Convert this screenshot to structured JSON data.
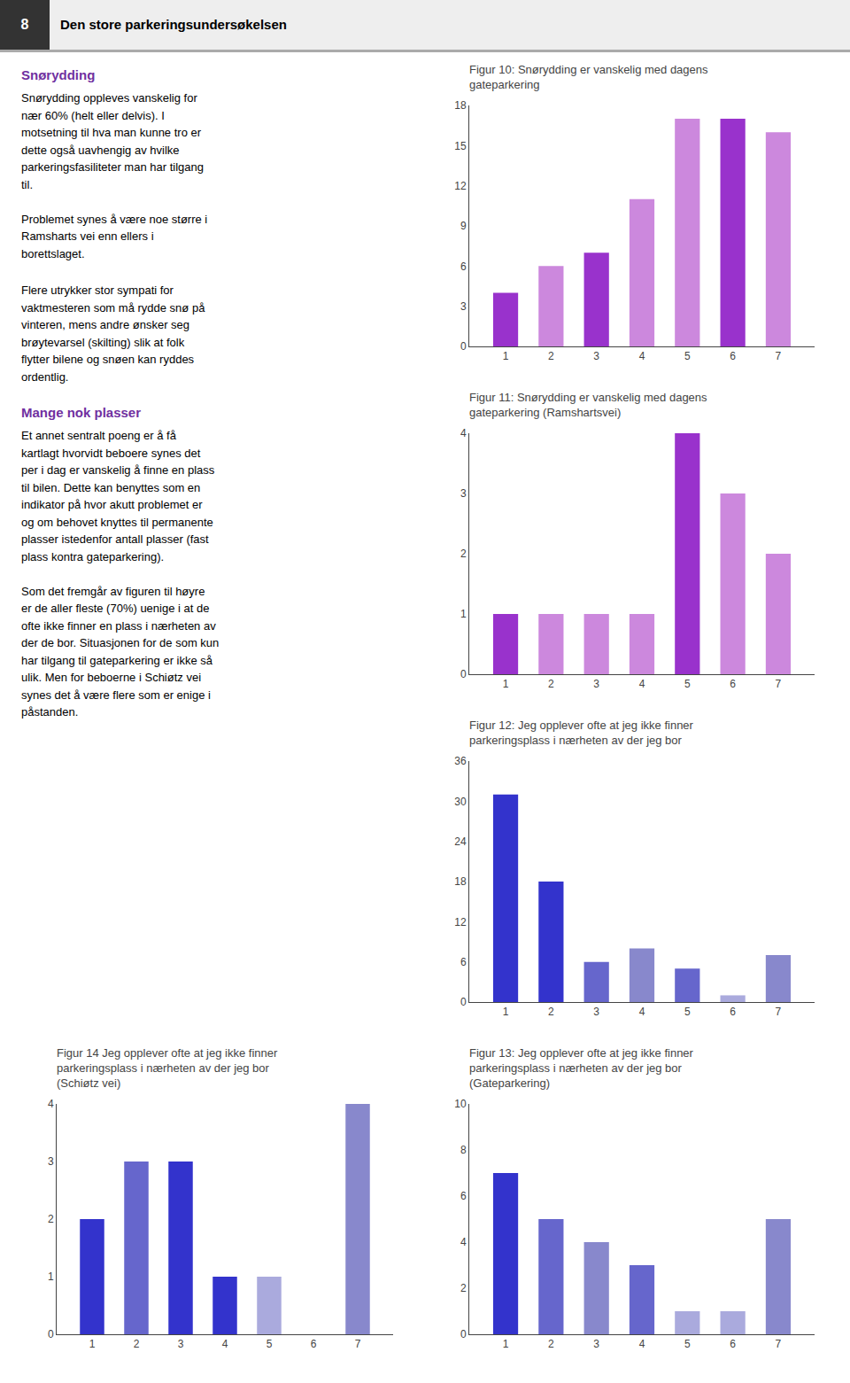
{
  "title": "Den store parkeringsundersøkelsen",
  "annotations": [
    {
      "text": "8"
    },
    {
      "title": "Snørydding",
      "text": "Snørydding oppleves vanskelig for\nnær 60% (helt eller delvis). I\nmotsetning til hva man kunne tro er\ndette også uavhengig av hvilke\nparkeringsfasiliteter man har tilgang\ntil.\n\nProblemet synes å være noe større i\nRamsharts vei enn ellers i\nborettslaget."
    },
    {
      "text": "Flere utrykker stor sympati for\nvaktmesteren som må rydde snø på\nvinteren, mens andre ønsker seg\nbrøytevarsel (skilting) slik at folk\nflytter bilene og snøen kan ryddes\nordentlig."
    },
    {
      "title": "Mange nok plasser",
      "text": "Et annet sentralt poeng er å få\nkartlagt hvorvidt beboere synes det\nper i dag er vanskelig å finne en plass\ntil bilen. Dette kan benyttes som en\nindikator på hvor akutt problemet er\nog om behovet knyttes til permanente\nplasser istedenfor antall plasser (fast\nplass kontra gateparkering).\n\nSom det fremgår av figuren til høyre\ner de aller fleste (70%) uenige i at de\nofte ikke finner en plass i nærheten av\nder de bor. Situasjonen for de som kun\nhar tilgang til gateparkering er ikke så\nulik. Men for beboerne i Schiøtz vei\nsynes det å være flere som er enige i\npåstanden."
    }
  ],
  "chart_data": [
    {
      "type": "bar",
      "title": "Figur 10: Snørydding er vanskelig med dagens\ngateparkering",
      "x": [
        1,
        2,
        3,
        4,
        5,
        6,
        7
      ],
      "values": [
        4,
        6,
        7,
        11,
        17,
        17,
        16
      ],
      "colors": [
        "#9932cc",
        "#cc88dd",
        "#9932cc",
        "#cc88dd",
        "#cc88dd",
        "#9932cc",
        "#cc88dd"
      ],
      "xlim": [
        0.2,
        7.8
      ],
      "xticks": [
        1,
        2,
        3,
        4,
        5,
        6,
        7
      ],
      "ylim": [
        0,
        18
      ],
      "yticks": [
        0,
        3,
        6,
        9,
        12,
        15,
        18
      ],
      "grid": false
    },
    {
      "type": "bar",
      "title": "Figur 11: Snørydding er vanskelig med dagens\ngateparkering (Ramshartsvei)",
      "x": [
        1,
        2,
        3,
        4,
        5,
        6,
        7
      ],
      "values": [
        1,
        1,
        1,
        1,
        4,
        3,
        2
      ],
      "colors": [
        "#9932cc",
        "#cc88dd",
        "#cc88dd",
        "#cc88dd",
        "#9932cc",
        "#cc88dd",
        "#cc88dd"
      ],
      "xlim": [
        0.2,
        7.8
      ],
      "xticks": [
        1,
        2,
        3,
        4,
        5,
        6,
        7
      ],
      "ylim": [
        0,
        4
      ],
      "yticks": [
        0,
        1,
        2,
        3,
        4
      ],
      "grid": false
    },
    {
      "type": "bar",
      "title": "Figur 12: Jeg opplever ofte at jeg ikke finner\nparkeringsplass i nærheten av der jeg bor",
      "x": [
        1,
        2,
        3,
        4,
        5,
        6,
        7
      ],
      "values": [
        31,
        18,
        6,
        8,
        5,
        1,
        7
      ],
      "colors": [
        "#3333cc",
        "#3333cc",
        "#6666cc",
        "#8888cc",
        "#6666cc",
        "#aaaadd",
        "#8888cc"
      ],
      "xlim": [
        0.2,
        7.8
      ],
      "xticks": [
        1,
        2,
        3,
        4,
        5,
        6,
        7
      ],
      "ylim": [
        0,
        36
      ],
      "yticks": [
        0,
        6,
        12,
        18,
        24,
        30,
        36
      ],
      "grid": false
    },
    {
      "type": "bar",
      "title": "Figur 13: Jeg opplever ofte at jeg ikke finner\nparkeringsplass i nærheten av der jeg bor\n(Gateparkering)",
      "x": [
        1,
        2,
        3,
        4,
        5,
        6,
        7
      ],
      "values": [
        7,
        5,
        4,
        3,
        1,
        1,
        5
      ],
      "colors": [
        "#3333cc",
        "#6666cc",
        "#8888cc",
        "#6666cc",
        "#aaaadd",
        "#aaaadd",
        "#8888cc"
      ],
      "xlim": [
        0.2,
        7.8
      ],
      "xticks": [
        1,
        2,
        3,
        4,
        5,
        6,
        7
      ],
      "ylim": [
        0,
        10
      ],
      "yticks": [
        0,
        2,
        4,
        6,
        8,
        10
      ],
      "grid": false
    },
    {
      "type": "bar",
      "title": "Figur 14 Jeg opplever ofte at jeg ikke finner\nparkeringsplass i nærheten av der jeg bor\n(Schiøtz vei)",
      "x": [
        1,
        2,
        3,
        4,
        5,
        6,
        7
      ],
      "values": [
        2,
        3,
        3,
        1,
        1,
        0,
        4
      ],
      "colors": [
        "#3333cc",
        "#6666cc",
        "#3333cc",
        "#3333cc",
        "#aaaadd",
        "#ffffff",
        "#8888cc"
      ],
      "xlim": [
        0.2,
        7.8
      ],
      "xticks": [
        1,
        2,
        3,
        4,
        5,
        6,
        7
      ],
      "ylim": [
        0,
        4
      ],
      "yticks": [
        0,
        1,
        2,
        3,
        4
      ],
      "grid": false
    }
  ]
}
